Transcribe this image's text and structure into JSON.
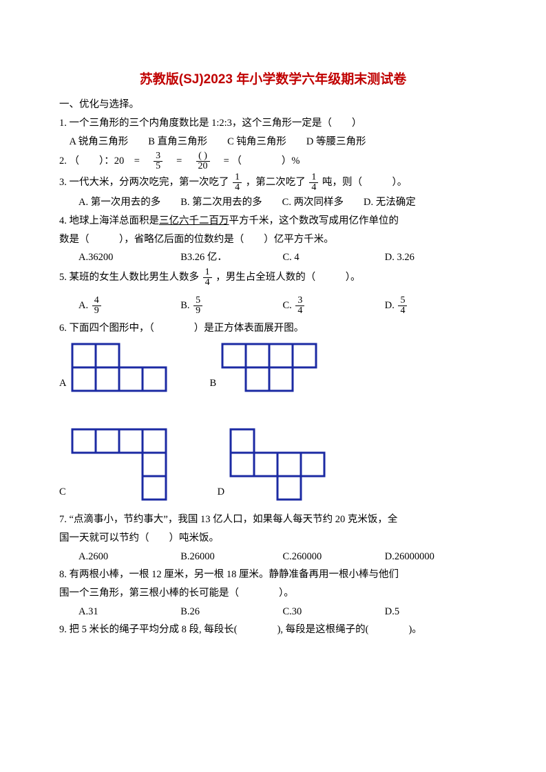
{
  "title": "苏教版(SJ)2023 年小学数学六年级期末测试卷",
  "section1": "一、优化与选择。",
  "q1": {
    "text": "1. 一个三角形的三个内角度数比是 1:2:3，这个三角形一定是（　　）",
    "opts": "　A 锐角三角形　　B 直角三角形　　C 钝角三角形　　D 等腰三角形"
  },
  "q2": {
    "prefix": "2. （　　）：20　=　",
    "frac1n": "3",
    "frac1d": "5",
    "mid1": "　=　",
    "frac2n": "(  )",
    "frac2d": "20",
    "mid2": "　= （　　　　）%"
  },
  "q3": {
    "p1": "3. 一代大米，分两次吃完，第一次吃了",
    "f1n": "1",
    "f1d": "4",
    "p2": "，第二次吃了",
    "f2n": "1",
    "f2d": "4",
    "p3": "吨，则（　　　）。",
    "opts": "A. 第一次用去的多　　B. 第二次用去的多　　C. 两次同样多　　D. 无法确定"
  },
  "q4": {
    "l1a": "4. 地球上海洋总面积是",
    "l1u": "三亿六千二百万",
    "l1b": "平方千米，这个数改写成用亿作单位的",
    "l2": "数是（　　　），省略亿后面的位数约是（　　）亿平方千米。",
    "oA": "A.36200",
    "oB": "B3.26 亿．",
    "oC": "C. 4",
    "oD": "D. 3.26"
  },
  "q5": {
    "p1": "5. 某班的女生人数比男生人数多",
    "fn": "1",
    "fd": "4",
    "p2": "，男生占全班人数的（　　　）。",
    "An": "4",
    "Ad": "9",
    "Bn": "5",
    "Bd": "9",
    "Cn": "3",
    "Cd": "4",
    "Dn": "5",
    "Dd": "4"
  },
  "q6": {
    "text": "6. 下面四个图形中，（　　　　）是正方体表面展开图。",
    "labA": "A",
    "labB": "B",
    "labC": "C",
    "labD": "D"
  },
  "q7": {
    "l1": "7. “点滴事小，节约事大”，我国 13 亿人口，如果每人每天节约 20 克米饭，全",
    "l2": "国一天就可以节约（　　）吨米饭。",
    "oA": "A.2600",
    "oB": "B.26000",
    "oC": "C.260000",
    "oD": "D.26000000"
  },
  "q8": {
    "l1": "8. 有两根小棒，一根 12 厘米，另一根 18 厘米。静静准备再用一根小棒与他们",
    "l2": "围一个三角形，第三根小棒的长可能是（　　　　）。",
    "oA": "A.31",
    "oB": "B.26",
    "oC": "C.30",
    "oD": "D.5"
  },
  "q9": "9. 把 5 米长的绳子平均分成 8 段, 每段长(　　　　), 每段是这根绳子的(　　　　)。",
  "net_style": {
    "cell": 34,
    "stroke": "#1b2aa3",
    "stroke_width": 3,
    "fill": "#ffffff"
  }
}
